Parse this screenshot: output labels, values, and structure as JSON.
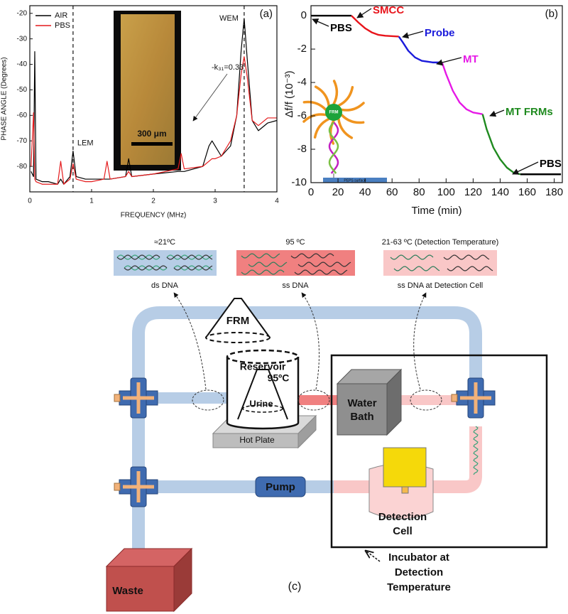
{
  "chart_data": [
    {
      "type": "line",
      "panel_label": "(a)",
      "xlabel": "FREQUENCY (MHz)",
      "ylabel": "PHASE ANGLE (Degrees)",
      "x": [
        0.02,
        0.06,
        0.08,
        0.1,
        0.2,
        0.3,
        0.45,
        0.5,
        0.55,
        0.65,
        0.7,
        0.75,
        0.9,
        1.0,
        1.2,
        1.25,
        1.3,
        1.55,
        1.6,
        1.65,
        2.0,
        2.4,
        2.45,
        2.5,
        2.8,
        2.9,
        2.95,
        3.0,
        3.1,
        3.25,
        3.35,
        3.42,
        3.47,
        3.52,
        3.6,
        3.7,
        3.85,
        4.0
      ],
      "series": [
        {
          "name": "AIR",
          "color": "#000000",
          "values": [
            -82,
            -84,
            -35,
            -85,
            -86,
            -86,
            -87,
            -85,
            -87,
            -84,
            -74,
            -84,
            -85,
            -85,
            -85,
            -85,
            -85,
            -84,
            -77,
            -84,
            -83,
            -82,
            -82,
            -82,
            -80,
            -72,
            -70,
            -72,
            -76,
            -72,
            -60,
            -35,
            -22,
            -38,
            -62,
            -66,
            -63,
            -62
          ]
        },
        {
          "name": "PBS",
          "color": "#e41a1c",
          "values": [
            -80,
            -59,
            -85,
            -86,
            -87,
            -87,
            -87,
            -78,
            -87,
            -85,
            -79,
            -85,
            -86,
            -86,
            -85,
            -78,
            -85,
            -84,
            -82,
            -84,
            -83,
            -81,
            -75,
            -81,
            -80,
            -78,
            -77,
            -77,
            -76,
            -70,
            -60,
            -44,
            -37,
            -45,
            -62,
            -64,
            -61,
            -61
          ]
        }
      ],
      "xlim": [
        0,
        4
      ],
      "xticks": [
        0,
        1,
        2,
        3,
        4
      ],
      "ylim": [
        -90,
        -17
      ],
      "yticks": [
        -20,
        -30,
        -40,
        -50,
        -60,
        -70,
        -80
      ],
      "vlines": [
        0.7,
        3.47
      ],
      "vline_labels": [
        "LEM",
        "WEM"
      ],
      "annotation": "-k₃₁=0.33",
      "scale_bar": "300 μm",
      "legend": "upper left",
      "grid": false
    },
    {
      "type": "line",
      "panel_label": "(b)",
      "xlabel": "Time (min)",
      "ylabel": "Δf/f (10⁻³)",
      "series": [
        {
          "name": "PBS",
          "color": "#000000",
          "x": [
            0,
            30
          ],
          "values": [
            0,
            0
          ]
        },
        {
          "name": "SMCC",
          "color": "#e8141b",
          "x": [
            30,
            35,
            40,
            45,
            50,
            55,
            65
          ],
          "values": [
            0,
            -0.4,
            -0.75,
            -1.0,
            -1.15,
            -1.2,
            -1.25
          ]
        },
        {
          "name": "Probe",
          "color": "#1a1adb",
          "x": [
            65,
            68,
            72,
            77,
            82,
            90,
            97
          ],
          "values": [
            -1.25,
            -1.6,
            -2.1,
            -2.5,
            -2.7,
            -2.8,
            -2.8
          ]
        },
        {
          "name": "MT",
          "color": "#e619e6",
          "x": [
            97,
            100,
            105,
            110,
            115,
            120,
            127
          ],
          "values": [
            -2.8,
            -3.5,
            -4.5,
            -5.2,
            -5.6,
            -5.8,
            -5.9
          ]
        },
        {
          "name": "MT FRMs",
          "color": "#1f8a1f",
          "x": [
            127,
            130,
            135,
            140,
            145,
            150,
            155
          ],
          "values": [
            -5.9,
            -6.8,
            -7.9,
            -8.6,
            -9.1,
            -9.4,
            -9.5
          ]
        },
        {
          "name": "PBS",
          "color": "#000000",
          "x": [
            155,
            185
          ],
          "values": [
            -9.5,
            -9.5
          ]
        }
      ],
      "xlim": [
        0,
        186
      ],
      "xticks": [
        0,
        20,
        40,
        60,
        80,
        100,
        120,
        140,
        160,
        180
      ],
      "ylim": [
        -10,
        0.6
      ],
      "yticks": [
        0,
        -2,
        -4,
        -6,
        -8,
        -10
      ],
      "inset_labels": [
        "FRM",
        "PEPS surface"
      ],
      "grid": false
    }
  ],
  "diagram": {
    "temperatures": [
      "≈21ºC",
      "95 ºC",
      "21-63 ºC (Detection Temperature)"
    ],
    "states": [
      "ds DNA",
      "ss DNA",
      "ss DNA at Detection Cell"
    ],
    "frm": "FRM",
    "reservoir": "Reservoir",
    "reservoir_temp": "95ºC",
    "urine": "Urine",
    "hot_plate": "Hot Plate",
    "water_bath": [
      "Water",
      "Bath"
    ],
    "pump": "Pump",
    "detection_cell": [
      "Detection",
      "Cell"
    ],
    "incubator": [
      "Incubator at",
      "Detection",
      "Temperature"
    ],
    "waste": "Waste",
    "panel_label": "(c)"
  }
}
